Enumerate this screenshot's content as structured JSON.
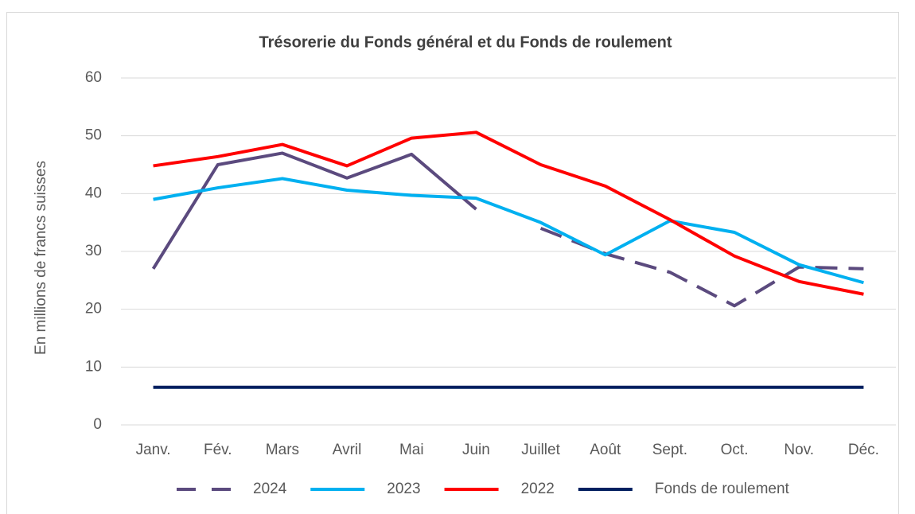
{
  "chart_data": {
    "type": "line",
    "title": "Trésorerie du Fonds général et du Fonds de roulement",
    "y_label": "En millions de francs suisses",
    "categories": [
      "Janv.",
      "Fév.",
      "Mars",
      "Avril",
      "Mai",
      "Juin",
      "Juillet",
      "Août",
      "Sept.",
      "Oct.",
      "Nov.",
      "Déc."
    ],
    "series": [
      {
        "name": "2024",
        "color": "#5b4a7e",
        "dashed_from": 6,
        "values": [
          27,
          45,
          47,
          42.7,
          46.8,
          37.3,
          34,
          29.6,
          26.4,
          20.6,
          27.3,
          27
        ]
      },
      {
        "name": "2023",
        "color": "#00b0f0",
        "values": [
          39,
          41,
          42.6,
          40.6,
          39.7,
          39.2,
          35,
          29.4,
          35.3,
          33.3,
          27.7,
          24.6
        ]
      },
      {
        "name": "2022",
        "color": "#ff0000",
        "values": [
          44.8,
          46.4,
          48.5,
          44.8,
          49.6,
          50.6,
          45,
          41.3,
          35.5,
          29.2,
          24.8,
          22.6
        ]
      },
      {
        "name": "Fonds de roulement",
        "color": "#002060",
        "values": [
          6.5,
          6.5,
          6.5,
          6.5,
          6.5,
          6.5,
          6.5,
          6.5,
          6.5,
          6.5,
          6.5,
          6.5
        ]
      }
    ],
    "ylim": [
      0,
      60
    ],
    "yticks": [
      0,
      10,
      20,
      30,
      40,
      50,
      60
    ],
    "grid": true,
    "legend": "bottom"
  }
}
